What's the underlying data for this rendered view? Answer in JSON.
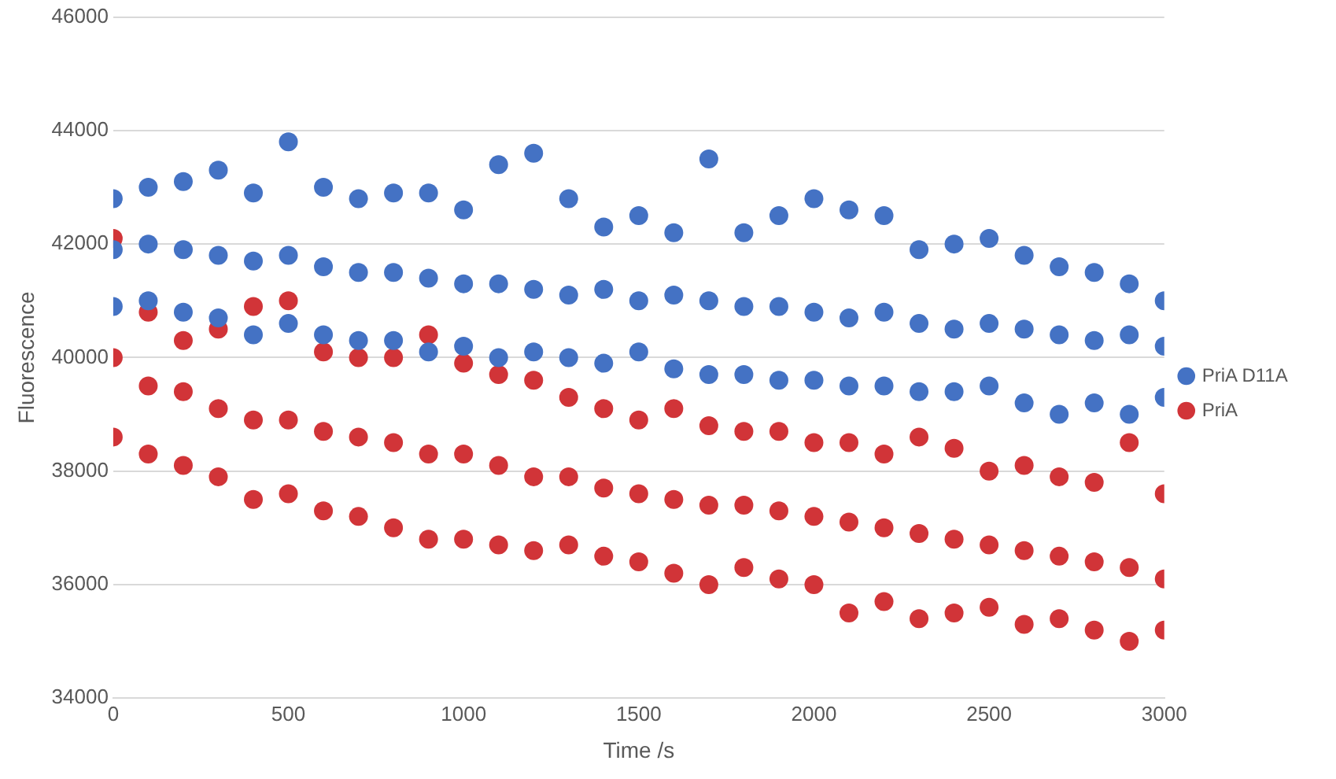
{
  "chart_data": {
    "type": "scatter",
    "xlabel": "Time /s",
    "ylabel": "Fluorescence",
    "xlim": [
      0,
      3000
    ],
    "xticks": [
      0,
      500,
      1000,
      1500,
      2000,
      2500,
      3000
    ],
    "ylim": [
      34000,
      46000
    ],
    "yticks": [
      34000,
      36000,
      38000,
      40000,
      42000,
      44000,
      46000
    ],
    "grid": "y",
    "legend": "right",
    "marker": "circle",
    "series": [
      {
        "name": "PriA D11A",
        "color": "#4472c4",
        "x": [
          0,
          0,
          0,
          100,
          100,
          100,
          200,
          200,
          200,
          300,
          300,
          300,
          400,
          400,
          400,
          500,
          500,
          500,
          600,
          600,
          600,
          700,
          700,
          700,
          800,
          800,
          800,
          900,
          900,
          900,
          1000,
          1000,
          1000,
          1100,
          1100,
          1100,
          1200,
          1200,
          1200,
          1300,
          1300,
          1300,
          1400,
          1400,
          1400,
          1500,
          1500,
          1500,
          1600,
          1600,
          1600,
          1700,
          1700,
          1700,
          1800,
          1800,
          1800,
          1900,
          1900,
          1900,
          2000,
          2000,
          2000,
          2100,
          2100,
          2100,
          2200,
          2200,
          2200,
          2300,
          2300,
          2300,
          2400,
          2400,
          2400,
          2500,
          2500,
          2500,
          2600,
          2600,
          2600,
          2700,
          2700,
          2700,
          2800,
          2800,
          2800,
          2900,
          2900,
          2900,
          3000,
          3000,
          3000
        ],
        "values": [
          42800,
          41900,
          40900,
          43000,
          42000,
          41000,
          43100,
          41900,
          40800,
          43300,
          41800,
          40700,
          42900,
          41700,
          40400,
          43800,
          41800,
          40600,
          43000,
          41600,
          40400,
          42800,
          41500,
          40300,
          42900,
          41500,
          40300,
          42900,
          41400,
          40100,
          42600,
          41300,
          40200,
          43400,
          41300,
          40000,
          43600,
          41200,
          40100,
          42800,
          41100,
          40000,
          42300,
          41200,
          39900,
          42500,
          41000,
          40100,
          42200,
          41100,
          39800,
          43500,
          41000,
          39700,
          42200,
          40900,
          39700,
          42500,
          40900,
          39600,
          42800,
          40800,
          39600,
          42600,
          40700,
          39500,
          42500,
          40800,
          39500,
          41900,
          40600,
          39400,
          42000,
          40500,
          39400,
          42100,
          40600,
          39500,
          41800,
          40500,
          39200,
          41600,
          40400,
          39000,
          41500,
          40300,
          39200,
          41300,
          40400,
          39000,
          41000,
          40200,
          39300
        ]
      },
      {
        "name": "PriA",
        "color": "#d13438",
        "x": [
          0,
          0,
          0,
          100,
          100,
          100,
          200,
          200,
          200,
          300,
          300,
          300,
          400,
          400,
          400,
          500,
          500,
          500,
          600,
          600,
          600,
          700,
          700,
          700,
          800,
          800,
          800,
          900,
          900,
          900,
          1000,
          1000,
          1000,
          1100,
          1100,
          1100,
          1200,
          1200,
          1200,
          1300,
          1300,
          1300,
          1400,
          1400,
          1400,
          1500,
          1500,
          1500,
          1600,
          1600,
          1600,
          1700,
          1700,
          1700,
          1800,
          1800,
          1800,
          1900,
          1900,
          1900,
          2000,
          2000,
          2000,
          2100,
          2100,
          2100,
          2200,
          2200,
          2200,
          2300,
          2300,
          2300,
          2400,
          2400,
          2400,
          2500,
          2500,
          2500,
          2600,
          2600,
          2600,
          2700,
          2700,
          2700,
          2800,
          2800,
          2800,
          2900,
          2900,
          2900,
          3000,
          3000,
          3000
        ],
        "values": [
          42100,
          40000,
          38600,
          40800,
          39500,
          38300,
          40300,
          39400,
          38100,
          40500,
          39100,
          37900,
          40900,
          38900,
          37500,
          41000,
          38900,
          37600,
          40100,
          38700,
          37300,
          40000,
          38600,
          37200,
          40000,
          38500,
          37000,
          40400,
          38300,
          36800,
          39900,
          38300,
          36800,
          39700,
          38100,
          36700,
          39600,
          37900,
          36600,
          39300,
          37900,
          36700,
          39100,
          37700,
          36500,
          38900,
          37600,
          36400,
          39100,
          37500,
          36200,
          38800,
          37400,
          36000,
          38700,
          37400,
          36300,
          38700,
          37300,
          36100,
          38500,
          37200,
          36000,
          38500,
          37100,
          35500,
          38300,
          37000,
          35700,
          38600,
          36900,
          35400,
          38400,
          36800,
          35500,
          38000,
          36700,
          35600,
          38100,
          36600,
          35300,
          37900,
          36500,
          35400,
          37800,
          36400,
          35200,
          38500,
          36300,
          35000,
          37600,
          36100,
          35200
        ]
      }
    ]
  }
}
